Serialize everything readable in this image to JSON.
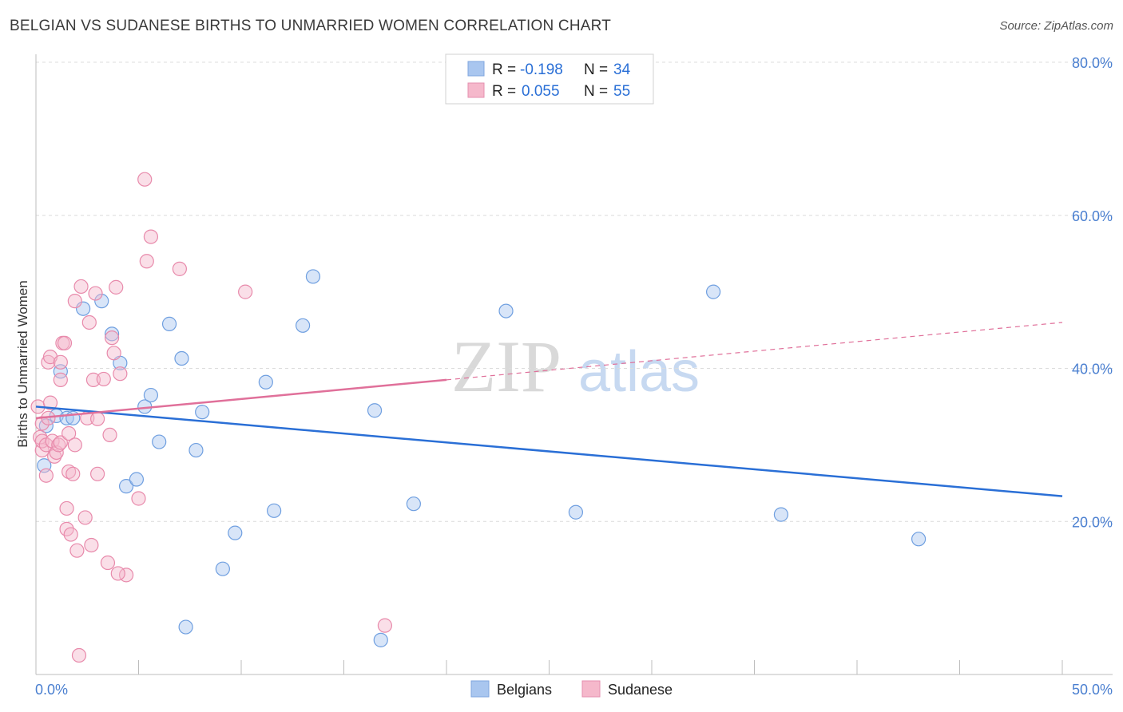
{
  "chart_data": {
    "type": "scatter",
    "title": "BELGIAN VS SUDANESE BIRTHS TO UNMARRIED WOMEN CORRELATION CHART",
    "source": "Source: ZipAtlas.com",
    "ylabel": "Births to Unmarried Women",
    "xlim": [
      0,
      50
    ],
    "ylim": [
      0,
      80
    ],
    "x_tick_labels": [
      "0.0%",
      "50.0%"
    ],
    "y_ticks": [
      20,
      40,
      60,
      80
    ],
    "y_tick_labels": [
      "20.0%",
      "40.0%",
      "60.0%",
      "80.0%"
    ],
    "watermark": {
      "part1": "ZIP",
      "part2": "atlas"
    },
    "legend": [
      {
        "r_label": "R =",
        "r_value": "-0.198",
        "n_label": "N =",
        "n_value": "34"
      },
      {
        "r_label": "R =",
        "r_value": "0.055",
        "n_label": "N =",
        "n_value": "55"
      }
    ],
    "series": [
      {
        "name": "Belgians",
        "color": "#a9c6ef",
        "line_color": "#2a6fd6",
        "trend": {
          "x0": 0,
          "y0": 35.0,
          "x1": 50,
          "y1": 23.3,
          "solid_to": 50
        },
        "points": [
          [
            0.4,
            27.3
          ],
          [
            0.5,
            32.5
          ],
          [
            1.0,
            33.8
          ],
          [
            1.2,
            39.6
          ],
          [
            1.5,
            33.5
          ],
          [
            1.8,
            33.5
          ],
          [
            2.3,
            47.8
          ],
          [
            3.2,
            48.8
          ],
          [
            3.7,
            44.5
          ],
          [
            4.1,
            40.7
          ],
          [
            4.4,
            24.6
          ],
          [
            4.9,
            25.5
          ],
          [
            5.3,
            35.0
          ],
          [
            5.6,
            36.5
          ],
          [
            6.0,
            30.4
          ],
          [
            6.5,
            45.8
          ],
          [
            7.1,
            41.3
          ],
          [
            7.3,
            6.2
          ],
          [
            7.8,
            29.3
          ],
          [
            8.1,
            34.3
          ],
          [
            9.1,
            13.8
          ],
          [
            9.7,
            18.5
          ],
          [
            11.2,
            38.2
          ],
          [
            11.6,
            21.4
          ],
          [
            13.0,
            45.6
          ],
          [
            13.5,
            52.0
          ],
          [
            16.5,
            34.5
          ],
          [
            16.8,
            4.5
          ],
          [
            18.4,
            22.3
          ],
          [
            22.9,
            47.5
          ],
          [
            26.3,
            21.2
          ],
          [
            33.0,
            50.0
          ],
          [
            36.3,
            20.9
          ],
          [
            43.0,
            17.7
          ]
        ]
      },
      {
        "name": "Sudanese",
        "color": "#f5b8cb",
        "line_color": "#e0709a",
        "trend": {
          "x0": 0,
          "y0": 33.5,
          "x1": 50,
          "y1": 46.0,
          "solid_to": 20
        },
        "points": [
          [
            0.1,
            35.0
          ],
          [
            0.2,
            31.0
          ],
          [
            0.3,
            32.8
          ],
          [
            0.3,
            29.3
          ],
          [
            0.3,
            30.5
          ],
          [
            0.5,
            26.0
          ],
          [
            0.5,
            30.0
          ],
          [
            0.6,
            33.5
          ],
          [
            0.6,
            40.8
          ],
          [
            0.7,
            41.5
          ],
          [
            0.7,
            35.5
          ],
          [
            0.8,
            30.5
          ],
          [
            0.9,
            28.5
          ],
          [
            1.0,
            29.0
          ],
          [
            1.1,
            30.0
          ],
          [
            1.2,
            38.5
          ],
          [
            1.2,
            30.3
          ],
          [
            1.2,
            40.8
          ],
          [
            1.3,
            43.3
          ],
          [
            1.4,
            43.3
          ],
          [
            1.5,
            21.7
          ],
          [
            1.5,
            19.0
          ],
          [
            1.6,
            31.5
          ],
          [
            1.6,
            26.5
          ],
          [
            1.7,
            18.3
          ],
          [
            1.8,
            26.2
          ],
          [
            1.9,
            48.8
          ],
          [
            1.9,
            30.0
          ],
          [
            2.0,
            16.2
          ],
          [
            2.1,
            2.5
          ],
          [
            2.2,
            50.7
          ],
          [
            2.4,
            20.5
          ],
          [
            2.5,
            33.5
          ],
          [
            2.6,
            46.0
          ],
          [
            2.7,
            16.9
          ],
          [
            2.8,
            38.5
          ],
          [
            2.9,
            49.8
          ],
          [
            3.0,
            26.2
          ],
          [
            3.0,
            33.4
          ],
          [
            3.3,
            38.6
          ],
          [
            3.5,
            14.6
          ],
          [
            3.6,
            31.3
          ],
          [
            3.7,
            44.0
          ],
          [
            3.8,
            42.0
          ],
          [
            3.9,
            50.6
          ],
          [
            4.1,
            39.3
          ],
          [
            4.4,
            13.0
          ],
          [
            5.0,
            23.0
          ],
          [
            5.3,
            64.7
          ],
          [
            5.4,
            54.0
          ],
          [
            5.6,
            57.2
          ],
          [
            7.0,
            53.0
          ],
          [
            10.2,
            50.0
          ],
          [
            17.0,
            6.4
          ],
          [
            4.0,
            13.2
          ]
        ]
      }
    ]
  }
}
